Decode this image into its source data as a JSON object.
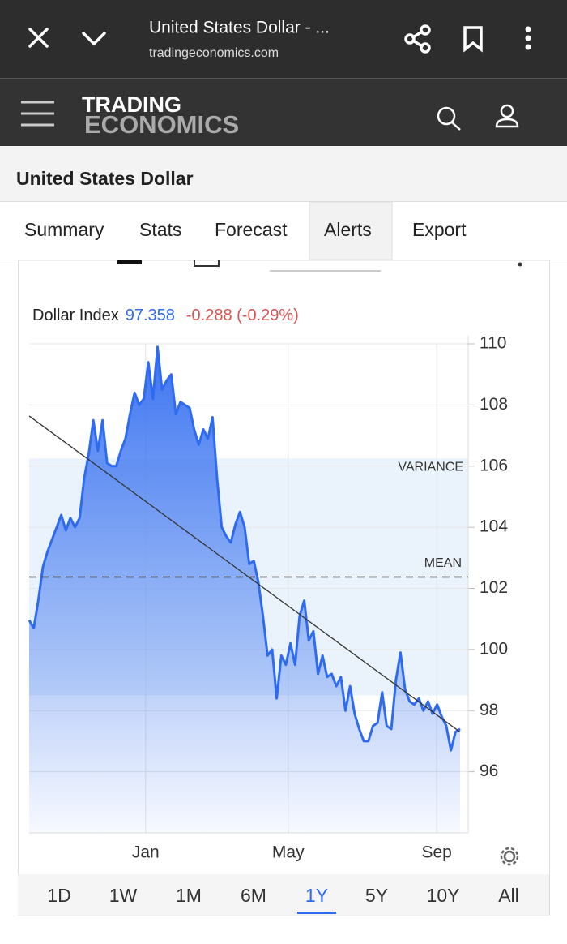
{
  "browser": {
    "title": "United States Dollar - ...",
    "url": "tradingeconomics.com"
  },
  "site": {
    "logo_top": "TRADING",
    "logo_bottom": "ECONOMICS"
  },
  "page_title": "United States Dollar",
  "tabs": {
    "items": [
      "Summary",
      "Stats",
      "Forecast",
      "Alerts",
      "Export"
    ],
    "active": "Alerts"
  },
  "ranges": {
    "items": [
      "1D",
      "1W",
      "1M",
      "6M",
      "1Y",
      "5Y",
      "10Y",
      "All"
    ],
    "active": "1Y"
  },
  "chart_data": {
    "type": "area",
    "series": [
      {
        "name": "Dollar Index",
        "color": "#2f6bf0",
        "values": [
          100.96,
          100.7,
          101.6,
          102.7,
          103.2,
          103.6,
          104.0,
          104.4,
          103.9,
          104.3,
          104.0,
          104.3,
          105.6,
          106.4,
          107.5,
          106.5,
          107.5,
          106.1,
          106.0,
          106.0,
          106.5,
          106.9,
          107.7,
          108.4,
          108.0,
          108.2,
          109.4,
          108.2,
          109.9,
          108.5,
          108.8,
          109.0,
          107.7,
          108.1,
          108.0,
          107.9,
          107.2,
          106.7,
          107.2,
          106.9,
          107.6,
          105.6,
          104.0,
          103.7,
          103.5,
          104.1,
          104.5,
          104.0,
          102.8,
          102.9,
          102.2,
          101.1,
          99.8,
          100.0,
          98.4,
          99.8,
          99.5,
          100.2,
          99.5,
          101.1,
          101.6,
          100.3,
          100.6,
          99.2,
          99.8,
          99.1,
          99.2,
          98.8,
          99.1,
          98.0,
          98.8,
          97.9,
          97.4,
          97.0,
          97.0,
          97.5,
          97.6,
          98.6,
          97.5,
          97.4,
          99.0,
          99.9,
          98.7,
          98.3,
          98.2,
          98.4,
          98.0,
          98.3,
          97.9,
          98.2,
          97.8,
          97.5,
          96.7,
          97.3,
          97.4
        ]
      }
    ],
    "last_value": 97.358,
    "last_value_color": "#2f6bf0",
    "change": "-0.288 (-0.29%)",
    "change_color": "#d9534f",
    "ylim": [
      94,
      110
    ],
    "yticks": [
      96,
      98,
      100,
      102,
      104,
      106,
      108,
      110
    ],
    "xlim": [
      0,
      94
    ],
    "xticks": [
      {
        "value": 25.4,
        "label": "Jan"
      },
      {
        "value": 56.5,
        "label": "May"
      },
      {
        "value": 88.9,
        "label": "Sep"
      }
    ],
    "mean": {
      "value": 102.37,
      "label": "MEAN"
    },
    "variance": {
      "range": [
        98.5,
        106.25
      ],
      "label": "VARIANCE"
    },
    "trend": {
      "values": [
        107.64,
        97.3
      ]
    },
    "grid": true
  }
}
